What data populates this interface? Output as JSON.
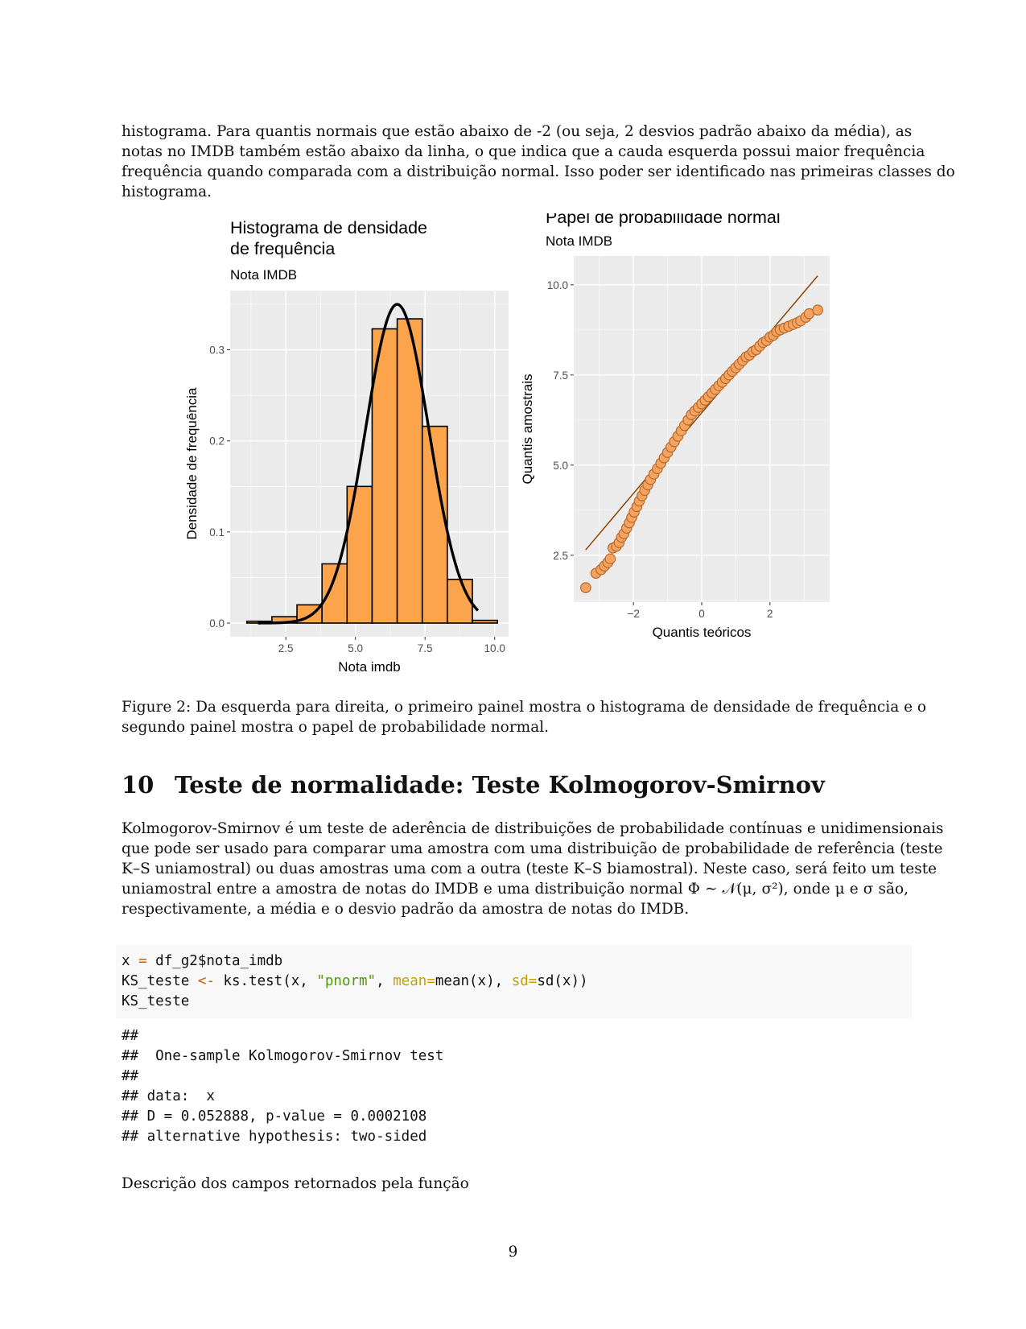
{
  "intro_lines": [
    "histograma. Para quantis normais que estão abaixo de -2 (ou seja, 2 desvios padrão abaixo da média), as",
    "notas no IMDB também estão abaixo da linha, o que indica que a cauda esquerda possui maior frequência",
    "frequência quando comparada com a distribuição normal. Isso poder ser identificado nas primeiras classes do",
    "histograma."
  ],
  "chart_data": [
    {
      "type": "bar",
      "title_lines": [
        "Histograma de densidade",
        "de frequência"
      ],
      "subtitle": "Nota IMDB",
      "xlabel": "Nota imdb",
      "ylabel": "Densidade de frequência",
      "xlim": [
        0.5,
        10.5
      ],
      "ylim": [
        -0.015,
        0.365
      ],
      "xticks": [
        2.5,
        5.0,
        7.5,
        10.0
      ],
      "xtick_labels": [
        "2.5",
        "5.0",
        "7.5",
        "10.0"
      ],
      "yticks": [
        0.0,
        0.1,
        0.2,
        0.3
      ],
      "ytick_labels": [
        "0.0",
        "0.1",
        "0.2",
        "0.3"
      ],
      "bin_edges": [
        1.1,
        2.0,
        2.9,
        3.8,
        4.7,
        5.6,
        6.5,
        7.4,
        8.3,
        9.2,
        10.1
      ],
      "values": [
        0.002,
        0.007,
        0.02,
        0.065,
        0.15,
        0.323,
        0.334,
        0.216,
        0.048,
        0.003
      ],
      "bar_color": "#FCA44C",
      "normal_curve": {
        "mean": 6.5,
        "sd": 1.14,
        "x_range": [
          1.5,
          9.4
        ],
        "color": "#000000"
      },
      "grid": true
    },
    {
      "type": "scatter",
      "title": "Papel de probabilidade normal",
      "subtitle": "Nota IMDB",
      "xlabel": "Quantis teóricos",
      "ylabel": "Quantis amostrais",
      "xlim": [
        -3.75,
        3.75
      ],
      "ylim": [
        1.2,
        10.8
      ],
      "xticks": [
        -2,
        0,
        2
      ],
      "xtick_labels": [
        "−2",
        "0",
        "2"
      ],
      "yticks": [
        2.5,
        5.0,
        7.5,
        10.0
      ],
      "ytick_labels": [
        "2.5",
        "5.0",
        "7.5",
        "10.0"
      ],
      "reference_line": {
        "x": [
          -3.4,
          3.4
        ],
        "y": [
          2.65,
          10.25
        ],
        "color": "#8B4500"
      },
      "point_color": "#F4A460",
      "point_edge": "#B8692A",
      "points": [
        [
          -3.4,
          1.6
        ],
        [
          -3.1,
          2.0
        ],
        [
          -2.95,
          2.1
        ],
        [
          -2.85,
          2.2
        ],
        [
          -2.75,
          2.3
        ],
        [
          -2.68,
          2.4
        ],
        [
          -2.6,
          2.7
        ],
        [
          -2.5,
          2.75
        ],
        [
          -2.42,
          2.85
        ],
        [
          -2.35,
          3.0
        ],
        [
          -2.28,
          3.1
        ],
        [
          -2.2,
          3.25
        ],
        [
          -2.12,
          3.4
        ],
        [
          -2.05,
          3.55
        ],
        [
          -1.98,
          3.7
        ],
        [
          -1.9,
          3.85
        ],
        [
          -1.83,
          4.0
        ],
        [
          -1.75,
          4.15
        ],
        [
          -1.67,
          4.3
        ],
        [
          -1.58,
          4.45
        ],
        [
          -1.5,
          4.6
        ],
        [
          -1.4,
          4.75
        ],
        [
          -1.3,
          4.9
        ],
        [
          -1.2,
          5.05
        ],
        [
          -1.1,
          5.2
        ],
        [
          -1.0,
          5.35
        ],
        [
          -0.9,
          5.5
        ],
        [
          -0.8,
          5.65
        ],
        [
          -0.7,
          5.8
        ],
        [
          -0.6,
          5.95
        ],
        [
          -0.5,
          6.1
        ],
        [
          -0.4,
          6.25
        ],
        [
          -0.3,
          6.4
        ],
        [
          -0.2,
          6.5
        ],
        [
          -0.1,
          6.6
        ],
        [
          0.0,
          6.7
        ],
        [
          0.1,
          6.8
        ],
        [
          0.2,
          6.9
        ],
        [
          0.3,
          7.0
        ],
        [
          0.4,
          7.1
        ],
        [
          0.5,
          7.2
        ],
        [
          0.6,
          7.3
        ],
        [
          0.7,
          7.4
        ],
        [
          0.8,
          7.5
        ],
        [
          0.9,
          7.6
        ],
        [
          1.0,
          7.7
        ],
        [
          1.1,
          7.8
        ],
        [
          1.2,
          7.9
        ],
        [
          1.3,
          8.0
        ],
        [
          1.4,
          8.05
        ],
        [
          1.5,
          8.15
        ],
        [
          1.6,
          8.2
        ],
        [
          1.7,
          8.3
        ],
        [
          1.8,
          8.4
        ],
        [
          1.9,
          8.45
        ],
        [
          2.0,
          8.55
        ],
        [
          2.1,
          8.6
        ],
        [
          2.2,
          8.7
        ],
        [
          2.3,
          8.75
        ],
        [
          2.42,
          8.8
        ],
        [
          2.55,
          8.85
        ],
        [
          2.68,
          8.9
        ],
        [
          2.8,
          8.95
        ],
        [
          2.9,
          9.0
        ],
        [
          3.05,
          9.1
        ],
        [
          3.15,
          9.2
        ],
        [
          3.4,
          9.3
        ]
      ],
      "grid": true
    }
  ],
  "caption_lines": [
    "Figure 2: Da esquerda para direita, o primeiro painel mostra o histograma de densidade de frequência e o",
    "segundo painel mostra o papel de probabilidade normal."
  ],
  "section": {
    "number": "10",
    "title": "Teste de normalidade: Teste Kolmogorov-Smirnov"
  },
  "body_lines": [
    "Kolmogorov-Smirnov é um teste de aderência de distribuições de probabilidade contínuas e unidimensionais",
    "que pode ser usado para comparar uma amostra com uma distribuição de probabilidade de referência (teste",
    "K–S uniamostral) ou duas amostras uma com a outra (teste K–S biamostral). Neste caso, será feito um teste",
    "uniamostral entre a amostra de notas do IMDB e uma distribuição normal Φ ∼ 𝒩(μ, σ²), onde μ e σ são,",
    "respectivamente, a média e o desvio padrão da amostra de notas do IMDB."
  ],
  "code": {
    "line1_a": "x ",
    "line1_op": "=",
    "line1_b": " df_g2$nota_imdb",
    "line2_a": "KS_teste ",
    "line2_op": "<-",
    "line2_b": " ks.test(x, ",
    "line2_str": "\"pnorm\"",
    "line2_c": ", ",
    "line2_arg1": "mean=",
    "line2_d": "mean(x), ",
    "line2_arg2": "sd=",
    "line2_e": "sd(x))",
    "line3": "KS_teste"
  },
  "output_lines": [
    "##",
    "##  One-sample Kolmogorov-Smirnov test",
    "##",
    "## data:  x",
    "## D = 0.052888, p-value = 0.0002108",
    "## alternative hypothesis: two-sided"
  ],
  "trailing_text": "Descrição dos campos retornados pela função",
  "page_number": "9"
}
